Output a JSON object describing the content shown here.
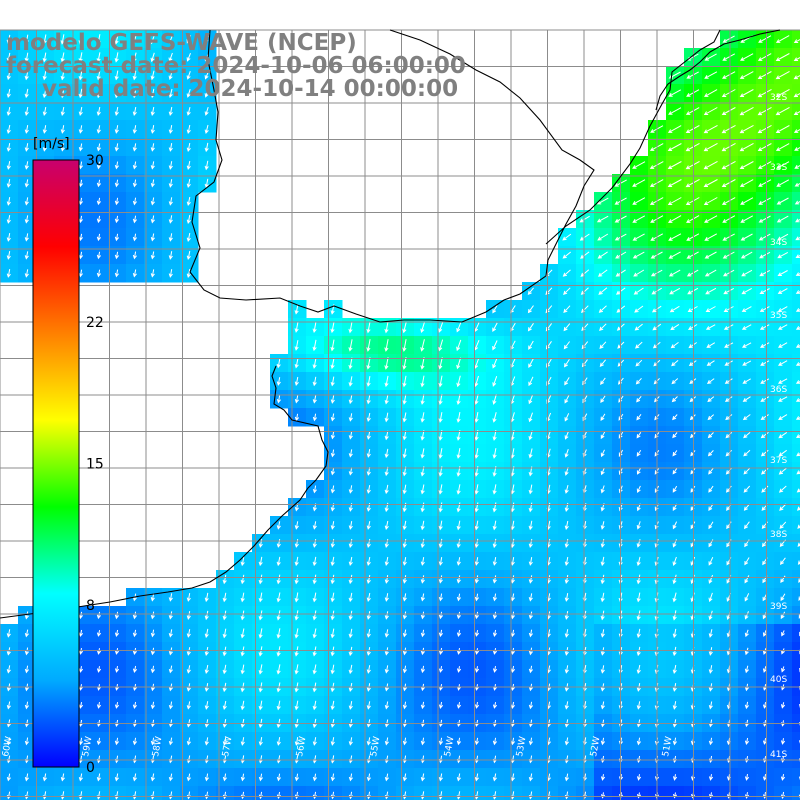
{
  "title": {
    "model": "modelo GEFS-WAVE (NCEP)",
    "forecast": "forecast date: 2024-10-06 06:00:00",
    "valid": "valid date: 2024-10-14 00:00:00"
  },
  "colorbar": {
    "unit": "[m/s]",
    "ticks": [
      "30",
      "22",
      "15",
      "8",
      "0"
    ],
    "tick_values": [
      30,
      22,
      15,
      8,
      0
    ],
    "range": [
      0,
      30
    ],
    "colors": [
      "#0000ff",
      "#00aaff",
      "#00ffff",
      "#00ff00",
      "#ffff00",
      "#ff8000",
      "#ff0000",
      "#c8006e"
    ]
  },
  "grid": {
    "lat_labels": [
      "32S",
      "33S",
      "34S",
      "35S",
      "36S",
      "37S",
      "38S",
      "39S",
      "40S",
      "41S"
    ],
    "lon_labels": [
      "60W",
      "59W",
      "58W",
      "57W",
      "56W",
      "55W",
      "54W",
      "53W",
      "52W",
      "51W"
    ]
  },
  "map_data": {
    "variable": "wind speed",
    "units": "m/s",
    "lon_range": [
      -61,
      -50
    ],
    "lat_range": [
      -41.5,
      -30.5
    ],
    "wind_pattern": "strong SW-directed flow (12-16 m/s) along the Brazilian coast in the NE, ~12 m/s near the Rio de la Plata mouth, weakening to 4-8 m/s southward with southerly-directed flow in the south"
  }
}
